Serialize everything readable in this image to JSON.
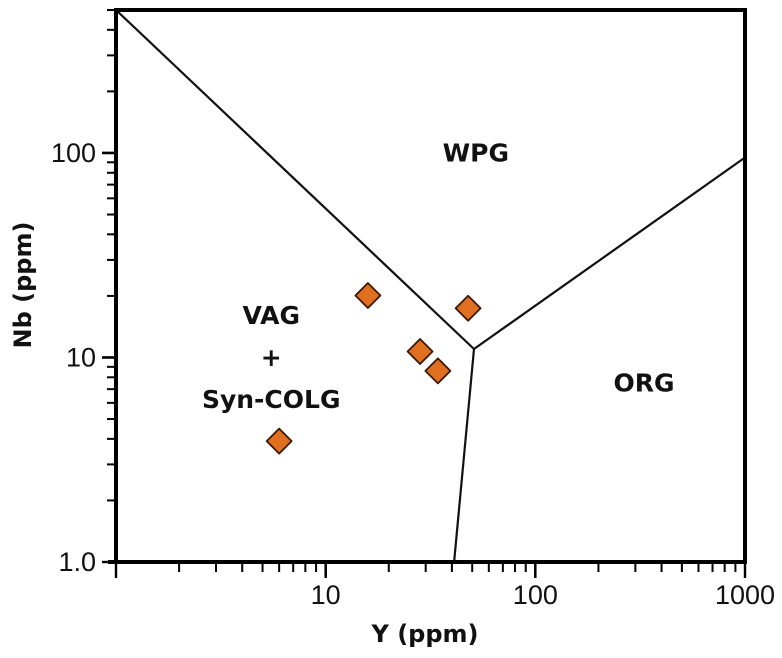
{
  "chart_data": {
    "type": "scatter",
    "title": "",
    "xlabel": "Y (ppm)",
    "ylabel": "Nb (ppm)",
    "xscale": "log",
    "yscale": "log",
    "xlim": [
      1,
      1000
    ],
    "ylim": [
      1,
      500
    ],
    "grid": false,
    "legend": "none",
    "x_ticks": [
      {
        "value": 10,
        "label": "10"
      },
      {
        "value": 100,
        "label": "100"
      },
      {
        "value": 1000,
        "label": "1000"
      }
    ],
    "y_ticks": [
      {
        "value": 1,
        "label": "1.0"
      },
      {
        "value": 10,
        "label": "10"
      },
      {
        "value": 100,
        "label": "100"
      }
    ],
    "series": [
      {
        "name": "Samples",
        "marker": "diamond",
        "color": "#E07020",
        "edge_color": "#3a1a05",
        "points": [
          {
            "x": 15.9,
            "y": 20.1
          },
          {
            "x": 47.8,
            "y": 17.4
          },
          {
            "x": 28.2,
            "y": 10.7
          },
          {
            "x": 34.3,
            "y": 8.6
          },
          {
            "x": 6.0,
            "y": 3.9
          }
        ]
      }
    ],
    "boundaries": [
      {
        "name": "VAG-WPG boundary",
        "points": [
          [
            1,
            500
          ],
          [
            51,
            11
          ]
        ]
      },
      {
        "name": "WPG-ORG boundary",
        "points": [
          [
            51,
            11
          ],
          [
            1000,
            95
          ]
        ]
      },
      {
        "name": "VAG-ORG boundary",
        "points": [
          [
            51,
            11
          ],
          [
            41,
            1
          ]
        ]
      }
    ],
    "field_labels": [
      {
        "name": "wpg",
        "lines": [
          "WPG"
        ],
        "x": 52,
        "y": 100
      },
      {
        "name": "vag-syn-colg",
        "lines": [
          "VAG",
          "+",
          "Syn-COLG"
        ],
        "x": 5.5,
        "y": 10
      },
      {
        "name": "org",
        "lines": [
          "ORG"
        ],
        "x": 330,
        "y": 7.5
      }
    ]
  }
}
